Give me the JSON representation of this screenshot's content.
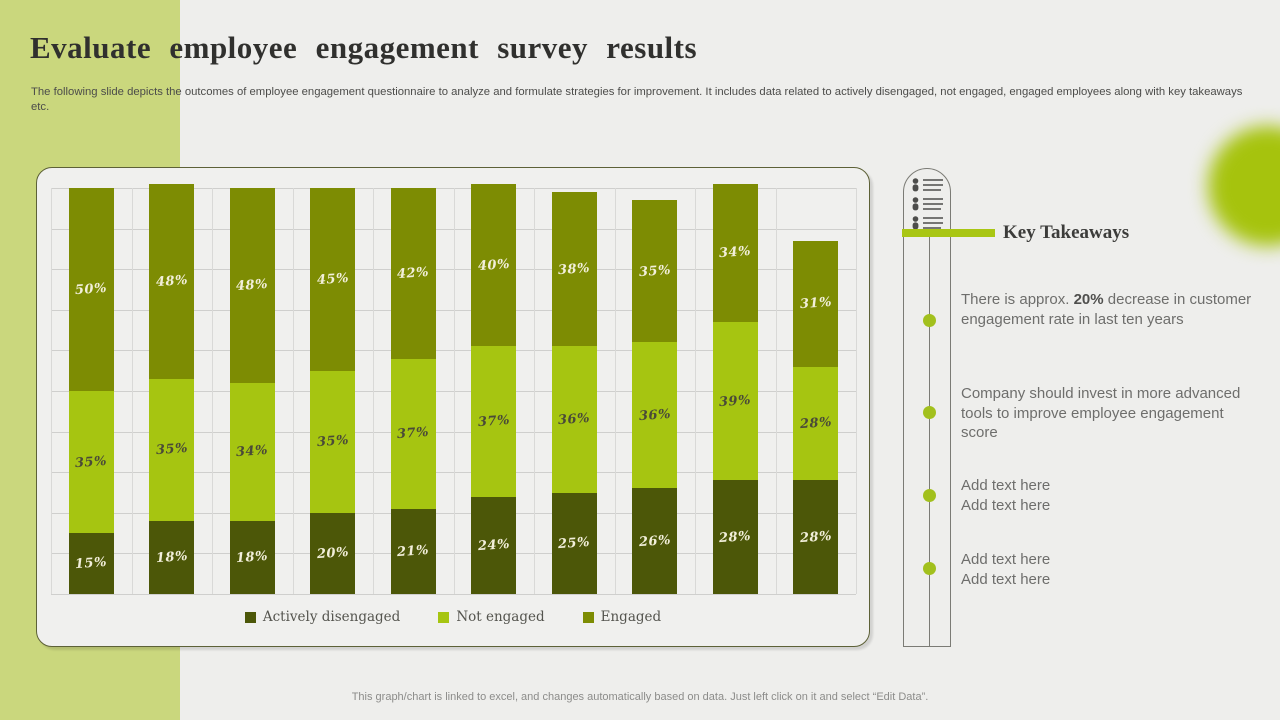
{
  "slide": {
    "title": "Evaluate employee engagement survey results",
    "subtitle": "The following slide depicts the outcomes of employee engagement questionnaire to analyze and formulate strategies for improvement. It includes data related to actively disengaged, not engaged, engaged employees along with key takeaways etc.",
    "footer": "This graph/chart is linked to excel, and changes automatically based on data. Just left click on it and select “Edit Data”."
  },
  "colors": {
    "background": "#eeeeec",
    "band_green": "#cad77d",
    "accent_green": "#a9c614",
    "dot_green": "#a2c01d",
    "actively_disengaged": "#4c5708",
    "not_engaged": "#a6c511",
    "engaged": "#7d8c03"
  },
  "chart_data": {
    "type": "bar",
    "stacked": true,
    "categories": [
      "",
      "",
      "",
      "",
      "",
      "",
      "",
      "",
      "",
      ""
    ],
    "series": [
      {
        "name": "Actively disengaged",
        "color": "#4c5708",
        "label_color": "#f2efda",
        "values": [
          15,
          18,
          18,
          20,
          21,
          24,
          25,
          26,
          28,
          28
        ]
      },
      {
        "name": "Not engaged",
        "color": "#a6c511",
        "label_color": "#4a4a38",
        "values": [
          35,
          35,
          34,
          35,
          37,
          37,
          36,
          36,
          39,
          28
        ]
      },
      {
        "name": "Engaged",
        "color": "#7d8c03",
        "label_color": "#f2efda",
        "values": [
          50,
          48,
          48,
          45,
          42,
          40,
          38,
          35,
          34,
          31
        ]
      }
    ],
    "value_suffix": "%",
    "ylim": [
      0,
      100
    ],
    "grid": true,
    "legend_position": "bottom",
    "title": "",
    "xlabel": "",
    "ylabel": ""
  },
  "takeaways": {
    "heading": "Key Takeaways",
    "items": [
      {
        "parts": [
          {
            "text": "There is approx. "
          },
          {
            "text": "20%",
            "bold": true
          },
          {
            "text": " decrease in customer engagement rate in last ten years"
          }
        ]
      },
      {
        "parts": [
          {
            "text": "Company should invest in more advanced tools to improve employee engagement score"
          }
        ]
      },
      {
        "parts": [
          {
            "text": "Add text here"
          },
          {
            "text": "Add text here",
            "newline": true
          }
        ]
      },
      {
        "parts": [
          {
            "text": "Add text here"
          },
          {
            "text": "Add text here",
            "newline": true
          }
        ]
      }
    ]
  }
}
